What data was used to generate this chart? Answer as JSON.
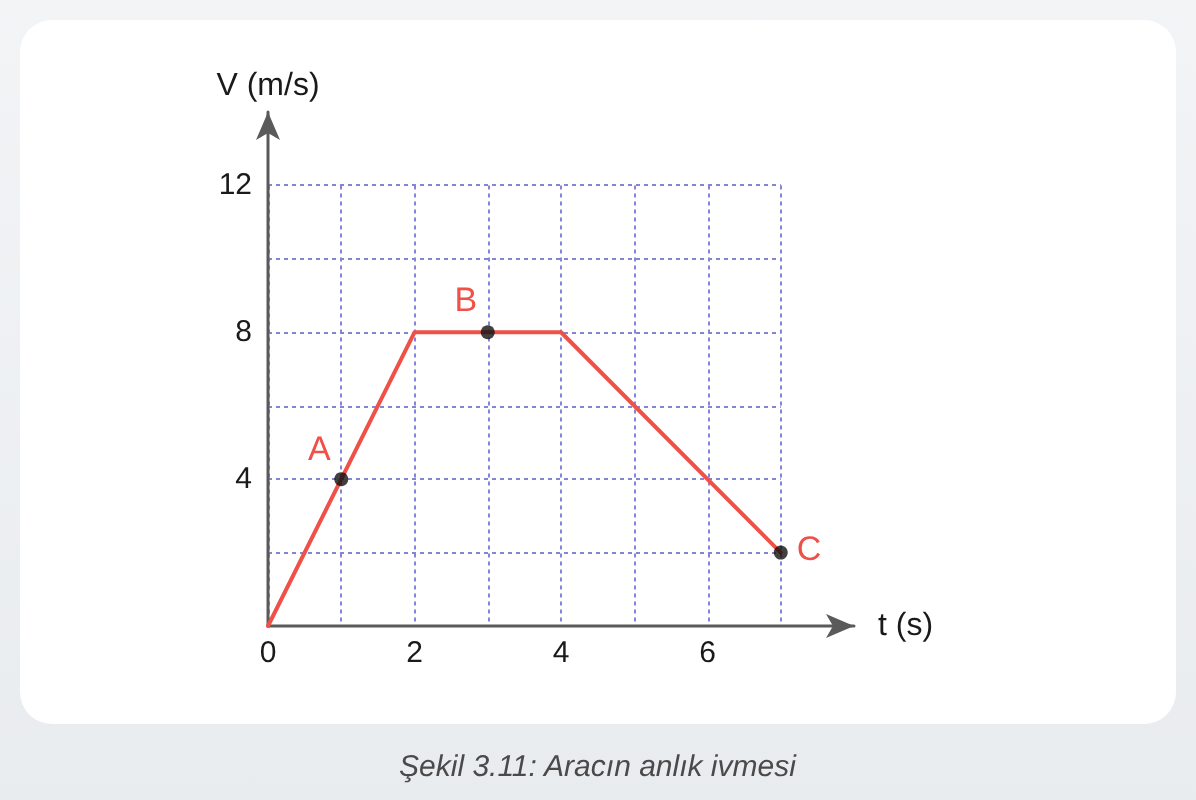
{
  "chart_data": {
    "type": "line",
    "xlabel": "t (s)",
    "ylabel": "V (m/s)",
    "xlim": [
      0,
      8
    ],
    "ylim": [
      0,
      14
    ],
    "xticks": [
      0,
      {
        "value": 1,
        "label": null
      },
      2,
      {
        "value": 3,
        "label": null
      },
      4,
      {
        "value": 5,
        "label": null
      },
      6,
      {
        "value": 7,
        "label": null
      }
    ],
    "yticks": [
      {
        "value": 2,
        "label": null
      },
      4,
      {
        "value": 6,
        "label": null
      },
      8,
      {
        "value": 10,
        "label": null
      },
      12
    ],
    "grid": true,
    "marker": "none",
    "series": [
      {
        "color": "#ef5047",
        "x": [
          0,
          2,
          4,
          7
        ],
        "values": [
          0,
          8,
          8,
          2
        ]
      },
      {
        "type": "scatter",
        "marker": "circle",
        "color": "#111111",
        "x": [
          1,
          3,
          7
        ],
        "values": [
          4,
          8,
          2
        ]
      }
    ],
    "annotations": [
      {
        "text": "A",
        "x": 1,
        "y": 4
      },
      {
        "text": "B",
        "x": 3,
        "y": 8
      },
      {
        "text": "C",
        "x": 7,
        "y": 2
      },
      "Şekil 3.11: Aracın anlık ivmesi"
    ]
  }
}
